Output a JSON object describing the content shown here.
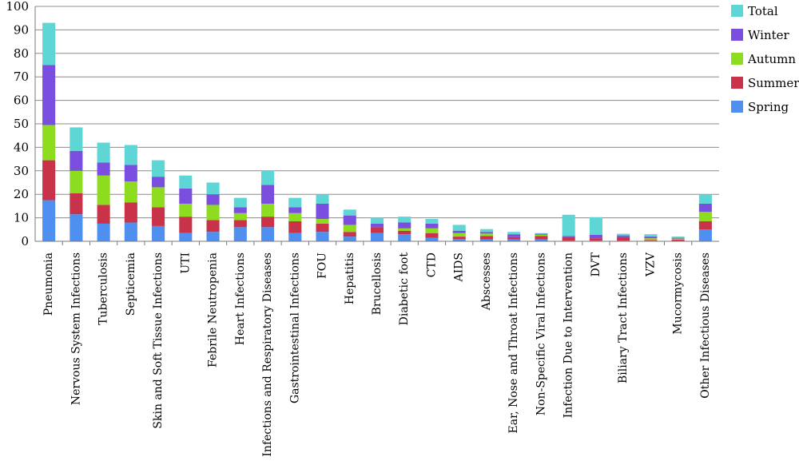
{
  "chart_data": {
    "type": "bar",
    "stacked": true,
    "title": "",
    "xlabel": "",
    "ylabel": "",
    "ylim": [
      0,
      100
    ],
    "yticks": [
      0,
      10,
      20,
      30,
      40,
      50,
      60,
      70,
      80,
      90,
      100
    ],
    "grid": true,
    "legend_position": "top-right",
    "categories": [
      "Pneumonia",
      "Nervous System Infections",
      "Tuberculosis",
      "Septicemia",
      "Skin and Soft Tissue Infections",
      "UTI",
      "Febrile Neutropenia",
      "Heart Infections",
      "Infections and Respiratory Diseases",
      "Gastrointestinal Infections",
      "FOU",
      "Hepatitis",
      "Brucellosis",
      "Diabetic foot",
      "CTD",
      "AIDS",
      "Abscesses",
      "Ear, Nose and Throat Infections",
      "Non-Specific Viral Infections",
      "Infection Due to Intervention",
      "DVT",
      "Biliary Tract Infections",
      "VZV",
      "Mucormycosis",
      "Other Infectious Diseases"
    ],
    "series": [
      {
        "name": "Spring",
        "color": "#4f8ff0",
        "values": [
          17.5,
          11.5,
          7.5,
          8,
          6.5,
          3.5,
          4,
          6,
          6,
          3.5,
          4,
          2,
          3.5,
          3,
          1.5,
          1,
          0.8,
          0.8,
          0.8,
          0.3,
          0.3,
          0.3,
          0.3,
          0.2,
          5
        ]
      },
      {
        "name": "Summer",
        "color": "#c8334a",
        "values": [
          17,
          9,
          8,
          8.5,
          8,
          7,
          5,
          3,
          4.5,
          5,
          3.5,
          2,
          2.5,
          1.5,
          2,
          1,
          1.5,
          1,
          1.5,
          1.5,
          1,
          1.5,
          0.3,
          0.5,
          3.5
        ]
      },
      {
        "name": "Autumn",
        "color": "#8ddc1f",
        "values": [
          15,
          9.5,
          12.5,
          9,
          8.5,
          5.5,
          6.5,
          3,
          5.5,
          3.5,
          2,
          3,
          0,
          1,
          2,
          1.5,
          1,
          0,
          0.5,
          0,
          0,
          0,
          0.7,
          0.5,
          4
        ]
      },
      {
        "name": "Winter",
        "color": "#7a4fe0",
        "values": [
          25.5,
          8.5,
          5.5,
          7,
          4.5,
          6.5,
          4.5,
          2.5,
          8,
          2.5,
          6.5,
          4,
          1.5,
          2.5,
          2,
          1,
          0.7,
          1.2,
          0.4,
          0.5,
          1.5,
          0.7,
          0.7,
          0.3,
          3.5
        ]
      },
      {
        "name": "Total",
        "color": "#5ed6d6",
        "values": [
          18,
          10,
          8.5,
          8.5,
          7,
          5.5,
          5,
          4,
          6,
          4,
          4,
          2.5,
          2.5,
          2.5,
          2,
          2.5,
          1.2,
          1,
          0.3,
          9,
          7.5,
          0.7,
          1,
          0.5,
          4
        ]
      }
    ]
  }
}
